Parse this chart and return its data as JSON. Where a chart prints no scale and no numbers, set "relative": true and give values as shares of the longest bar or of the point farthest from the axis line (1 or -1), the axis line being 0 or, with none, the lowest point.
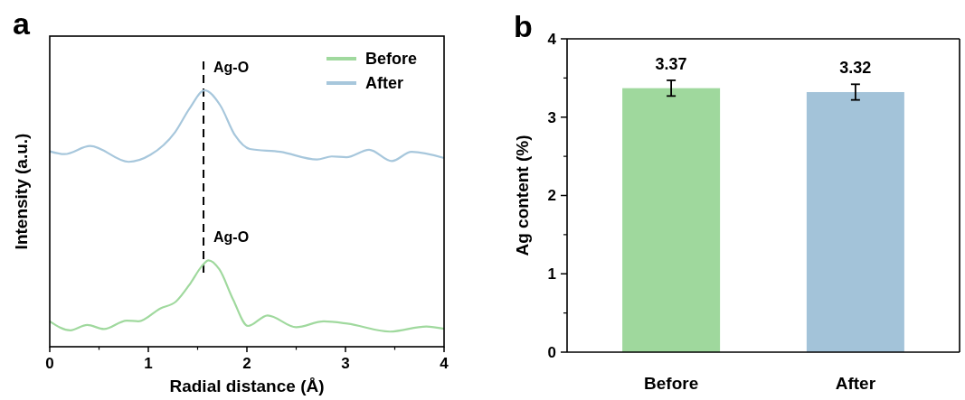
{
  "chart_data": [
    {
      "type": "line",
      "title": "a",
      "xlabel": "Radial distance (Å)",
      "ylabel": "Intensity (a.u.)",
      "relative": true,
      "tick_labels": "x",
      "xlim": [
        0,
        4
      ],
      "xticks": [
        0,
        1,
        2,
        3,
        4
      ],
      "legend": "top right",
      "line_style": "solid",
      "series": [
        {
          "name": "Before",
          "color": "#a0d99e",
          "x": [
            0,
            0.21,
            0.38,
            0.55,
            0.78,
            0.9,
            1.12,
            1.28,
            1.43,
            1.54,
            1.61,
            1.72,
            1.86,
            2.01,
            2.21,
            2.5,
            2.78,
            3.02,
            3.45,
            3.82,
            4.0
          ],
          "values": [
            0.099,
            0.064,
            0.085,
            0.069,
            0.102,
            0.099,
            0.149,
            0.176,
            0.249,
            0.313,
            0.337,
            0.302,
            0.184,
            0.081,
            0.122,
            0.076,
            0.099,
            0.09,
            0.059,
            0.079,
            0.07
          ]
        },
        {
          "name": "After",
          "color": "#a7c7dc",
          "x": [
            0,
            0.15,
            0.41,
            0.8,
            1.02,
            1.27,
            1.42,
            1.57,
            1.73,
            1.88,
            2.03,
            2.34,
            2.71,
            2.86,
            3.01,
            3.24,
            3.47,
            3.67,
            4.0
          ],
          "values": [
            0.762,
            0.751,
            0.783,
            0.721,
            0.748,
            0.836,
            0.93,
            1.0,
            0.941,
            0.824,
            0.771,
            0.76,
            0.73,
            0.742,
            0.739,
            0.768,
            0.724,
            0.76,
            0.736
          ]
        }
      ],
      "ref_lines": [
        {
          "axis": "x",
          "value": 1.56,
          "color": "#000000",
          "line_style": "dashed"
        }
      ],
      "annotations": [
        {
          "text": "Ag-O",
          "x": 1.56,
          "y": 1.0
        },
        {
          "text": "Ag-O",
          "x": 1.56,
          "y": 0.337
        }
      ]
    },
    {
      "type": "bar",
      "title": "b",
      "ylabel": "Ag content (%)",
      "categories": [
        "Before",
        "After"
      ],
      "values": [
        3.37,
        3.32
      ],
      "colors": [
        "#9fd89d",
        "#a3c3d9"
      ],
      "errors": [
        0.1,
        0.1
      ],
      "ylim": [
        0,
        4
      ],
      "yticks": [
        0,
        1,
        2,
        3,
        4
      ],
      "data_labels": true
    }
  ]
}
